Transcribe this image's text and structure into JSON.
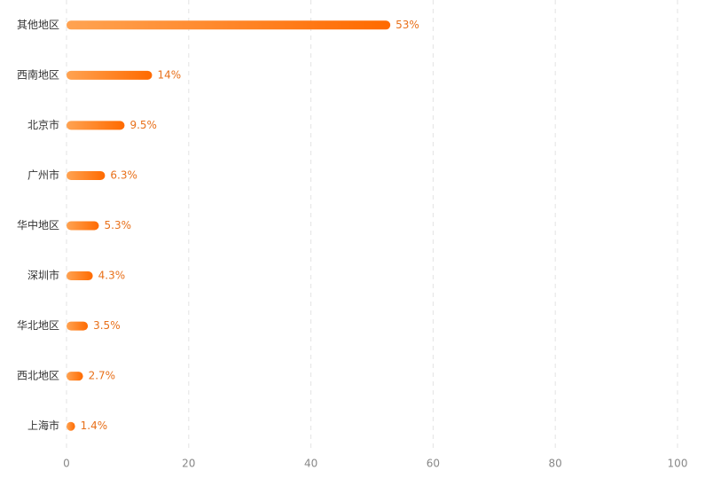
{
  "chart_data": {
    "type": "hbar",
    "categories": [
      "其他地区",
      "西南地区",
      "北京市",
      "广州市",
      "华中地区",
      "深圳市",
      "华北地区",
      "西北地区",
      "上海市"
    ],
    "values": [
      53,
      14,
      9.5,
      6.3,
      5.3,
      4.3,
      3.5,
      2.7,
      1.4
    ],
    "value_labels": [
      "53%",
      "14%",
      "9.5%",
      "6.3%",
      "5.3%",
      "4.3%",
      "3.5%",
      "2.7%",
      "1.4%"
    ],
    "gradient": [
      "#ffa352",
      "#ff6a00"
    ],
    "xlim": [
      0,
      100
    ],
    "xticks": [
      0,
      20,
      40,
      60,
      80,
      100
    ],
    "grid": true
  }
}
